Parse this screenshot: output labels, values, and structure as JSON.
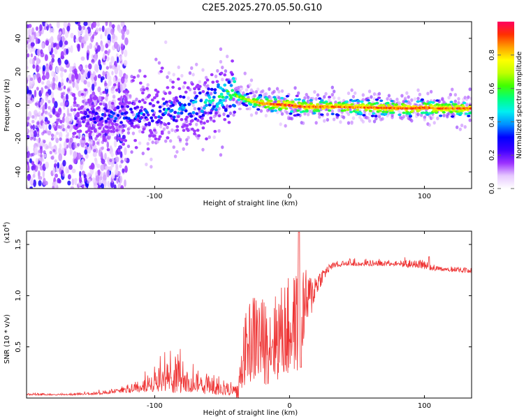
{
  "title": "C2E5.2025.270.05.50.G10",
  "spectrogram": {
    "type": "heatmap",
    "xlabel": "Height of straight line (km)",
    "ylabel": "Frequency (Hz)",
    "xlim": [
      -195,
      135
    ],
    "ylim": [
      -50,
      50
    ],
    "xticks": [
      -100,
      0,
      100
    ],
    "xtick_labels": [
      "-100",
      "0",
      "100"
    ],
    "yticks": [
      -40,
      -20,
      0,
      20,
      40
    ],
    "ytick_labels": [
      "-40",
      "-20",
      "0",
      "20",
      "40"
    ],
    "ridge": {
      "x": [
        -155,
        -130,
        -110,
        -90,
        -75,
        -60,
        -50,
        -42,
        -38,
        -30,
        -20,
        -10,
        0,
        10,
        30,
        60,
        90,
        100,
        110,
        135
      ],
      "freq": [
        -8,
        -6,
        -5,
        -3,
        -2,
        2,
        5,
        8,
        5,
        3,
        1,
        0.5,
        0,
        -1,
        -1,
        -1.5,
        -2,
        -1.5,
        -2,
        -2
      ],
      "amp": [
        0.25,
        0.3,
        0.33,
        0.38,
        0.42,
        0.45,
        0.55,
        0.6,
        0.65,
        0.72,
        0.86,
        0.9,
        0.92,
        0.88,
        0.86,
        0.87,
        0.9,
        0.89,
        0.88,
        0.86
      ]
    },
    "colorbar": {
      "label": "Normalized spectral amplitude",
      "ticks": [
        0.0,
        0.2,
        0.4,
        0.6,
        0.8
      ],
      "tick_labels": [
        "0.0",
        "0.2",
        "0.4",
        "0.6",
        "0.8"
      ],
      "colors": [
        "#ffffff",
        "#e6c8ff",
        "#9b30ff",
        "#3c00ff",
        "#0000ff",
        "#0090ff",
        "#00f0f0",
        "#00ff80",
        "#40ff00",
        "#c0ff00",
        "#ffff00",
        "#ffa000",
        "#ff3000",
        "#ff0060"
      ]
    }
  },
  "snr": {
    "type": "line",
    "xlabel": "Height of straight line (km)",
    "ylabel": "SNR (10 * v/v)",
    "multiplier_label": "(x10",
    "multiplier_exp": "4",
    "multiplier_close": ")",
    "xlim": [
      -195,
      135
    ],
    "ylim": [
      0,
      1.63
    ],
    "xticks": [
      -100,
      0,
      100
    ],
    "xtick_labels": [
      "-100",
      "0",
      "100"
    ],
    "yticks": [
      0.5,
      1.0,
      1.5
    ],
    "ytick_labels": [
      "0.5",
      "1.0",
      "1.5"
    ],
    "color": "#ee3333",
    "envelope": {
      "x": [
        -195,
        -160,
        -140,
        -125,
        -110,
        -100,
        -90,
        -85,
        -80,
        -75,
        -70,
        -60,
        -50,
        -38,
        -34,
        -30,
        -25,
        -20,
        -15,
        -10,
        -5,
        0,
        5,
        8,
        10,
        15,
        20,
        25,
        30,
        40,
        50,
        60,
        70,
        80,
        90,
        95,
        100,
        110,
        120,
        135
      ],
      "base": [
        0.03,
        0.03,
        0.04,
        0.06,
        0.08,
        0.1,
        0.12,
        0.12,
        0.1,
        0.09,
        0.08,
        0.07,
        0.06,
        0.05,
        0.4,
        0.5,
        0.55,
        0.5,
        0.5,
        0.55,
        0.6,
        0.62,
        0.7,
        0.75,
        0.85,
        0.95,
        1.1,
        1.2,
        1.27,
        1.3,
        1.3,
        1.3,
        1.3,
        1.3,
        1.28,
        1.28,
        1.27,
        1.25,
        1.24,
        1.23
      ],
      "spread": [
        0.01,
        0.01,
        0.02,
        0.04,
        0.08,
        0.12,
        0.2,
        0.25,
        0.2,
        0.15,
        0.12,
        0.12,
        0.1,
        0.08,
        0.4,
        0.5,
        0.6,
        0.55,
        0.5,
        0.55,
        0.6,
        0.65,
        0.6,
        0.8,
        0.5,
        0.3,
        0.15,
        0.08,
        0.05,
        0.03,
        0.03,
        0.03,
        0.03,
        0.03,
        0.04,
        0.05,
        0.05,
        0.03,
        0.03,
        0.03
      ]
    }
  }
}
